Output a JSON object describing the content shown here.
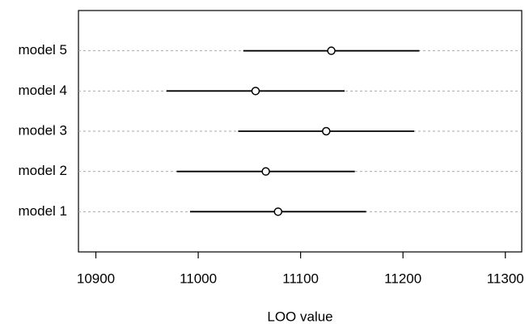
{
  "chart_data": {
    "type": "dotplot",
    "x_label": "LOO value",
    "categories": [
      "model 1",
      "model 2",
      "model 3",
      "model 4",
      "model 5"
    ],
    "values": [
      11078,
      11066,
      11125,
      11056,
      11130
    ],
    "errors": [
      86,
      87,
      86,
      87,
      86
    ],
    "color": "#000000",
    "xlim": [
      10883,
      11316
    ],
    "xticks": [
      10900,
      11000,
      11100,
      11200,
      11300
    ],
    "grid": true
  }
}
